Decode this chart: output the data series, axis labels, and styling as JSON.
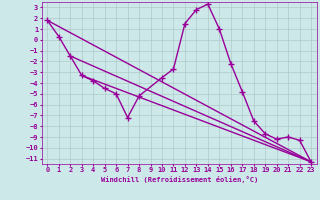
{
  "xlabel": "Windchill (Refroidissement éolien,°C)",
  "background_color": "#cce8e8",
  "grid_color": "#b0c8c8",
  "line_color": "#990099",
  "xlim": [
    -0.5,
    23.5
  ],
  "ylim": [
    -11.5,
    3.5
  ],
  "xticks": [
    0,
    1,
    2,
    3,
    4,
    5,
    6,
    7,
    8,
    9,
    10,
    11,
    12,
    13,
    14,
    15,
    16,
    17,
    18,
    19,
    20,
    21,
    22,
    23
  ],
  "yticks": [
    3,
    2,
    1,
    0,
    -1,
    -2,
    -3,
    -4,
    -5,
    -6,
    -7,
    -8,
    -9,
    -10,
    -11
  ],
  "line1_x": [
    0,
    1,
    2,
    3,
    4,
    5,
    6,
    7,
    8,
    10,
    11,
    12,
    13,
    14,
    15,
    16,
    17,
    18,
    19,
    20,
    21,
    22,
    23
  ],
  "line1_y": [
    1.8,
    0.3,
    -1.5,
    -3.3,
    -3.8,
    -4.5,
    -5.0,
    -7.2,
    -5.2,
    -3.5,
    -2.7,
    1.5,
    2.8,
    3.3,
    1.0,
    -2.2,
    -4.8,
    -7.5,
    -8.7,
    -9.2,
    -9.0,
    -9.3,
    -11.3
  ],
  "line2_x": [
    0,
    23
  ],
  "line2_y": [
    1.8,
    -11.3
  ],
  "line3_x": [
    2,
    23
  ],
  "line3_y": [
    -1.5,
    -11.3
  ],
  "line4_x": [
    3,
    23
  ],
  "line4_y": [
    -3.3,
    -11.3
  ],
  "marker": "+",
  "marker_size": 5,
  "line_width": 1.0,
  "tick_fontsize": 5,
  "label_fontsize": 5
}
